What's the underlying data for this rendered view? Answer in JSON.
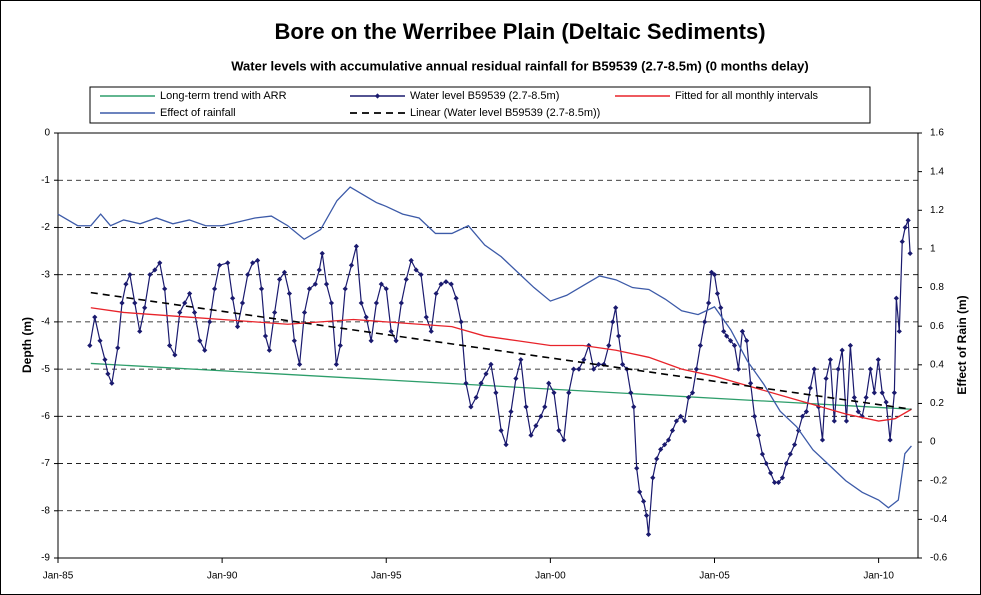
{
  "chart_data": {
    "type": "line",
    "title": "Bore on the Werribee Plain (Deltaic Sediments)",
    "subtitle": "Water levels with accumulative annual residual rainfall for B59539 (2.7-8.5m) (0 months delay)",
    "y_label": "Depth (m)",
    "y2_label": "Effect of Rain (m)",
    "xlim": [
      1985,
      2011.2
    ],
    "xticks": [
      {
        "value": 1985,
        "label": "Jan-85"
      },
      {
        "value": 1990,
        "label": "Jan-90"
      },
      {
        "value": 1995,
        "label": "Jan-95"
      },
      {
        "value": 2000,
        "label": "Jan-00"
      },
      {
        "value": 2005,
        "label": "Jan-05"
      },
      {
        "value": 2010,
        "label": "Jan-10"
      }
    ],
    "ylim": [
      -9,
      0
    ],
    "yticks": [
      0,
      -1,
      -2,
      -3,
      -4,
      -5,
      -6,
      -7,
      -8,
      -9
    ],
    "y2lim": [
      -0.6,
      1.6
    ],
    "y2ticks": [
      1.6,
      1.4,
      1.2,
      1,
      0.8,
      0.6,
      0.4,
      0.2,
      0,
      -0.2,
      -0.4,
      -0.6
    ],
    "grid": true,
    "legend": "top",
    "series": [
      {
        "name": "Long-term trend with ARR",
        "color": "#2e9e6b",
        "x": [
          1986,
          2011
        ],
        "values": [
          -4.88,
          -5.85
        ]
      },
      {
        "name": "Water level B59539 (2.7-8.5m)",
        "color": "#1a1a6e",
        "marker": "diamond",
        "x": [
          1985.97,
          1986.12,
          1986.28,
          1986.43,
          1986.52,
          1986.64,
          1986.82,
          1986.95,
          1987.07,
          1987.19,
          1987.34,
          1987.49,
          1987.64,
          1987.8,
          1987.95,
          1988.1,
          1988.25,
          1988.4,
          1988.56,
          1988.71,
          1988.86,
          1989.01,
          1989.16,
          1989.32,
          1989.47,
          1989.62,
          1989.77,
          1989.92,
          1990.17,
          1990.32,
          1990.47,
          1990.62,
          1990.78,
          1990.93,
          1991.08,
          1991.2,
          1991.32,
          1991.44,
          1991.6,
          1991.75,
          1991.9,
          1992.05,
          1992.2,
          1992.36,
          1992.51,
          1992.66,
          1992.84,
          1992.96,
          1993.05,
          1993.18,
          1993.33,
          1993.48,
          1993.6,
          1993.75,
          1993.94,
          1994.09,
          1994.24,
          1994.39,
          1994.54,
          1994.7,
          1994.85,
          1995,
          1995.15,
          1995.3,
          1995.46,
          1995.61,
          1995.76,
          1995.91,
          1996.06,
          1996.22,
          1996.37,
          1996.52,
          1996.67,
          1996.82,
          1996.98,
          1997.13,
          1997.28,
          1997.43,
          1997.58,
          1997.74,
          1997.89,
          1998.04,
          1998.19,
          1998.34,
          1998.5,
          1998.65,
          1998.8,
          1998.95,
          1999.1,
          1999.26,
          1999.41,
          1999.56,
          1999.71,
          1999.83,
          1999.95,
          2000.11,
          2000.26,
          2000.41,
          2000.56,
          2000.71,
          2000.87,
          2001.02,
          2001.17,
          2001.32,
          2001.47,
          2001.63,
          2001.78,
          2001.9,
          2001.99,
          2002.08,
          2002.2,
          2002.33,
          2002.45,
          2002.54,
          2002.63,
          2002.72,
          2002.84,
          2002.93,
          2002.99,
          2003.12,
          2003.24,
          2003.36,
          2003.48,
          2003.6,
          2003.72,
          2003.84,
          2003.97,
          2004.09,
          2004.21,
          2004.33,
          2004.45,
          2004.57,
          2004.7,
          2004.82,
          2004.91,
          2005,
          2005.09,
          2005.19,
          2005.28,
          2005.37,
          2005.49,
          2005.61,
          2005.73,
          2005.85,
          2005.98,
          2006.1,
          2006.22,
          2006.34,
          2006.46,
          2006.58,
          2006.71,
          2006.83,
          2006.95,
          2007.07,
          2007.19,
          2007.31,
          2007.44,
          2007.56,
          2007.68,
          2007.8,
          2007.92,
          2008.04,
          2008.17,
          2008.29,
          2008.4,
          2008.53,
          2008.65,
          2008.77,
          2008.89,
          2009.02,
          2009.14,
          2009.26,
          2009.38,
          2009.5,
          2009.62,
          2009.75,
          2009.87,
          2009.99,
          2010.11,
          2010.23,
          2010.35,
          2010.48,
          2010.54,
          2010.63,
          2010.72,
          2010.81,
          2010.9,
          2010.96
        ],
        "values": [
          -4.5,
          -3.9,
          -4.4,
          -4.8,
          -5.1,
          -5.3,
          -4.55,
          -3.6,
          -3.2,
          -3.0,
          -3.6,
          -4.2,
          -3.7,
          -3.0,
          -2.9,
          -2.75,
          -3.3,
          -4.5,
          -4.7,
          -3.8,
          -3.6,
          -3.4,
          -3.8,
          -4.4,
          -4.6,
          -4.0,
          -3.3,
          -2.8,
          -2.75,
          -3.5,
          -4.1,
          -3.6,
          -3.0,
          -2.75,
          -2.7,
          -3.3,
          -4.3,
          -4.6,
          -3.8,
          -3.1,
          -2.95,
          -3.4,
          -4.4,
          -4.9,
          -3.8,
          -3.3,
          -3.2,
          -2.9,
          -2.55,
          -3.2,
          -3.6,
          -4.9,
          -4.5,
          -3.3,
          -2.8,
          -2.4,
          -3.6,
          -3.9,
          -4.4,
          -3.6,
          -3.2,
          -3.3,
          -4.2,
          -4.4,
          -3.6,
          -3.1,
          -2.7,
          -2.9,
          -3.0,
          -3.9,
          -4.2,
          -3.4,
          -3.2,
          -3.15,
          -3.2,
          -3.5,
          -4.0,
          -5.3,
          -5.8,
          -5.6,
          -5.3,
          -5.1,
          -4.9,
          -5.5,
          -6.3,
          -6.6,
          -5.9,
          -5.2,
          -4.8,
          -5.8,
          -6.4,
          -6.2,
          -6.0,
          -5.8,
          -5.3,
          -5.5,
          -6.3,
          -6.5,
          -5.5,
          -5.0,
          -5.0,
          -4.8,
          -4.5,
          -5.0,
          -4.9,
          -4.9,
          -4.5,
          -4.0,
          -3.7,
          -4.3,
          -4.9,
          -5.0,
          -5.5,
          -5.8,
          -7.1,
          -7.6,
          -7.8,
          -8.1,
          -8.5,
          -7.3,
          -6.9,
          -6.7,
          -6.6,
          -6.5,
          -6.3,
          -6.1,
          -6.0,
          -6.1,
          -5.6,
          -5.5,
          -5.0,
          -4.5,
          -4.0,
          -3.6,
          -2.95,
          -3.0,
          -3.4,
          -3.7,
          -4.2,
          -4.3,
          -4.4,
          -4.5,
          -5.0,
          -4.2,
          -4.4,
          -5.3,
          -6.0,
          -6.4,
          -6.8,
          -7.0,
          -7.2,
          -7.4,
          -7.4,
          -7.3,
          -7.0,
          -6.8,
          -6.6,
          -6.3,
          -6.0,
          -5.9,
          -5.4,
          -5.0,
          -5.8,
          -6.5,
          -5.2,
          -4.8,
          -6.1,
          -5.0,
          -4.6,
          -6.1,
          -4.5,
          -5.6,
          -5.9,
          -6.0,
          -5.6,
          -5.0,
          -5.5,
          -4.8,
          -5.5,
          -5.7,
          -6.5,
          -5.5,
          -3.5,
          -4.2,
          -2.3,
          -2.0,
          -1.85,
          -2.55
        ]
      },
      {
        "name": "Fitted for all monthly intervals",
        "color": "#e8232a",
        "x": [
          1986,
          1987,
          1988,
          1989,
          1990,
          1991,
          1992,
          1993,
          1994,
          1995,
          1996,
          1997,
          1998,
          1999,
          2000,
          2001,
          2002,
          2003,
          2004,
          2005,
          2006,
          2007,
          2008,
          2009,
          2010,
          2010.5,
          2011
        ],
        "values": [
          -3.7,
          -3.8,
          -3.85,
          -3.9,
          -3.95,
          -4.0,
          -4.05,
          -4.0,
          -3.95,
          -4.0,
          -4.05,
          -4.1,
          -4.3,
          -4.4,
          -4.5,
          -4.5,
          -4.6,
          -4.75,
          -5.0,
          -5.15,
          -5.35,
          -5.55,
          -5.75,
          -5.95,
          -6.1,
          -6.05,
          -5.85
        ]
      },
      {
        "name": "Effect of rainfall",
        "color": "#3c5aa8",
        "axis": "y2",
        "x": [
          1985,
          1985.3,
          1985.6,
          1986,
          1986.3,
          1986.6,
          1987,
          1987.5,
          1988,
          1988.5,
          1989,
          1989.5,
          1990,
          1990.5,
          1991,
          1991.5,
          1992,
          1992.5,
          1993,
          1993.5,
          1993.9,
          1994.3,
          1994.7,
          1995,
          1995.5,
          1996,
          1996.5,
          1997,
          1997.5,
          1998,
          1998.5,
          1999,
          1999.5,
          2000,
          2000.5,
          2001,
          2001.5,
          2002,
          2002.5,
          2003,
          2003.5,
          2004,
          2004.5,
          2005,
          2005.5,
          2006,
          2006.5,
          2007,
          2007.5,
          2008,
          2008.5,
          2009,
          2009.5,
          2010,
          2010.3,
          2010.6,
          2010.8,
          2011
        ],
        "values": [
          1.18,
          1.15,
          1.12,
          1.12,
          1.18,
          1.12,
          1.15,
          1.13,
          1.16,
          1.13,
          1.15,
          1.12,
          1.12,
          1.14,
          1.16,
          1.17,
          1.12,
          1.05,
          1.1,
          1.25,
          1.32,
          1.28,
          1.24,
          1.22,
          1.18,
          1.16,
          1.08,
          1.08,
          1.12,
          1.02,
          0.96,
          0.88,
          0.8,
          0.73,
          0.76,
          0.81,
          0.86,
          0.84,
          0.8,
          0.79,
          0.74,
          0.68,
          0.66,
          0.7,
          0.58,
          0.42,
          0.3,
          0.16,
          0.08,
          -0.04,
          -0.12,
          -0.2,
          -0.26,
          -0.3,
          -0.34,
          -0.3,
          -0.06,
          -0.02
        ]
      },
      {
        "name": "Linear (Water level B59539 (2.7-8.5m))",
        "color": "#000000",
        "style": "dashed",
        "x": [
          1986,
          2011
        ],
        "values": [
          -3.38,
          -5.85
        ]
      }
    ]
  }
}
